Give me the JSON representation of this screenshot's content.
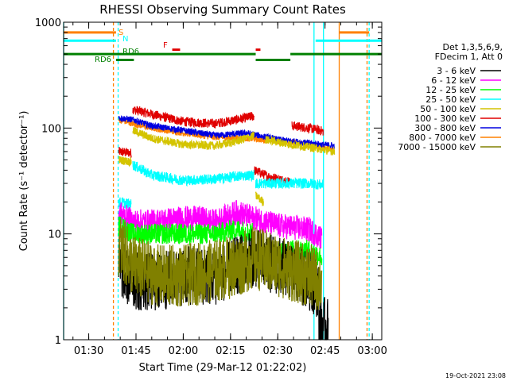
{
  "chart_data": {
    "type": "line",
    "title": "RHESSI Observing Summary Count Rates",
    "xlabel": "Start Time (29-Mar-12 01:22:02)",
    "ylabel": "Count Rate (s⁻¹ detector⁻¹)",
    "y_scale": "log",
    "ylim": [
      1,
      1000
    ],
    "xlim": [
      "01:22:02",
      "03:03:00"
    ],
    "x_ticks": [
      "01:30",
      "01:45",
      "02:00",
      "02:15",
      "02:30",
      "02:45",
      "03:00"
    ],
    "y_ticks": [
      "1",
      "10",
      "100",
      "1000"
    ],
    "footer": "19-Oct-2021 23:08",
    "legend": {
      "placement": "right",
      "header": [
        "Det 1,3,5,6,9,",
        "FDecim 1, Att 0"
      ],
      "entries": [
        {
          "label": "3 - 6 keV",
          "color": "#000000"
        },
        {
          "label": "6 - 12 keV",
          "color": "#ff00ff"
        },
        {
          "label": "12 - 25 keV",
          "color": "#00ff00"
        },
        {
          "label": "25 - 50 keV",
          "color": "#00ffff"
        },
        {
          "label": "50 - 100 keV",
          "color": "#d4c400"
        },
        {
          "label": "100 - 300 keV",
          "color": "#e00000"
        },
        {
          "label": "300 - 800 keV",
          "color": "#0000e0"
        },
        {
          "label": "800 - 7000 keV",
          "color": "#ff8000"
        },
        {
          "label": "7000 - 15000 keV",
          "color": "#808000"
        }
      ]
    },
    "flag_labels": {
      "s": "S",
      "n": "N",
      "f": "F",
      "rd": "RD6"
    },
    "flags": [
      {
        "label": "S",
        "color": "#ff8000",
        "y": 800,
        "segments": [
          [
            "01:22:02",
            "01:38:40"
          ],
          [
            "02:49:30",
            "02:59:00"
          ]
        ]
      },
      {
        "label": "N",
        "color": "#00ffff",
        "y": 670,
        "segments": [
          [
            "01:22:02",
            "01:38:40"
          ],
          [
            "02:42:00",
            "03:03:00"
          ]
        ]
      },
      {
        "label": "F",
        "color": "#e00000",
        "y": 550,
        "segments": [
          [
            "01:56:30",
            "01:59:00"
          ],
          [
            "02:23:00",
            "02:24:30"
          ]
        ]
      },
      {
        "label": "RD6",
        "color": "#008000",
        "y": 500,
        "segments": [
          [
            "01:22:02",
            "02:23:00"
          ],
          [
            "02:34:00",
            "03:03:00"
          ]
        ]
      },
      {
        "label": "RD6",
        "color": "#008000",
        "y": 440,
        "segments": [
          [
            "01:38:40",
            "01:44:20"
          ],
          [
            "02:23:00",
            "02:34:00"
          ]
        ]
      }
    ],
    "vlines": [
      {
        "t": "01:22:02",
        "color": "#00ffff",
        "dashed": false
      },
      {
        "t": "01:37:50",
        "color": "#ff8000",
        "dashed": true
      },
      {
        "t": "01:39:20",
        "color": "#00ffff",
        "dashed": true
      },
      {
        "t": "02:41:30",
        "color": "#00ffff",
        "dashed": false
      },
      {
        "t": "02:44:30",
        "color": "#00ffff",
        "dashed": false
      },
      {
        "t": "02:49:30",
        "color": "#ff8000",
        "dashed": false
      },
      {
        "t": "02:58:20",
        "color": "#ff8000",
        "dashed": true
      },
      {
        "t": "02:59:00",
        "color": "#00ffff",
        "dashed": true
      }
    ],
    "series": [
      {
        "name": "100 - 300 keV",
        "color": "#e00000",
        "noise": 0.045,
        "t0": "01:39:30",
        "segments": [
          {
            "t": [
              "01:39:30",
              "01:43:30"
            ],
            "y": [
              60,
              58
            ]
          },
          {
            "t": [
              "01:44:00",
              "01:50:00",
              "02:00:00",
              "02:10:00",
              "02:17:00",
              "02:22:30"
            ],
            "y": [
              150,
              135,
              115,
              110,
              120,
              130
            ]
          },
          {
            "t": [
              "02:22:30",
              "02:27:00",
              "02:34:00"
            ],
            "y": [
              40,
              35,
              31
            ]
          },
          {
            "t": [
              "02:34:30",
              "02:40:00",
              "02:44:30"
            ],
            "y": [
              105,
              100,
              93
            ]
          }
        ]
      },
      {
        "name": "800 - 7000 keV",
        "color": "#ff8000",
        "noise": 0.03,
        "t0": "01:39:30",
        "segments": [
          {
            "t": [
              "01:39:30",
              "01:44:00",
              "01:50:00",
              "02:00:00",
              "02:10:00",
              "02:20:00",
              "02:30:00",
              "02:40:00",
              "02:48:00"
            ],
            "y": [
              120,
              110,
              100,
              90,
              82,
              80,
              75,
              70,
              62
            ]
          }
        ]
      },
      {
        "name": "300 - 800 keV",
        "color": "#0000e0",
        "noise": 0.03,
        "t0": "01:39:30",
        "segments": [
          {
            "t": [
              "01:39:30",
              "01:44:00",
              "01:50:00",
              "02:00:00",
              "02:10:00",
              "02:20:00",
              "02:30:00",
              "02:40:00",
              "02:48:00"
            ],
            "y": [
              125,
              120,
              105,
              95,
              85,
              90,
              78,
              72,
              68
            ]
          }
        ]
      },
      {
        "name": "50 - 100 keV",
        "color": "#d4c400",
        "noise": 0.04,
        "t0": "01:39:30",
        "segments": [
          {
            "t": [
              "01:39:30",
              "01:43:30"
            ],
            "y": [
              50,
              48
            ]
          },
          {
            "t": [
              "01:44:00",
              "01:50:00",
              "02:00:00",
              "02:10:00",
              "02:17:00",
              "02:22:30"
            ],
            "y": [
              95,
              80,
              70,
              68,
              75,
              85
            ]
          },
          {
            "t": [
              "02:23:00",
              "02:25:30"
            ],
            "y": [
              23,
              20
            ]
          },
          {
            "t": [
              "02:26:00",
              "02:34:00",
              "02:40:00",
              "02:48:00"
            ],
            "y": [
              78,
              70,
              66,
              60
            ]
          }
        ]
      },
      {
        "name": "25 - 50 keV",
        "color": "#00ffff",
        "noise": 0.05,
        "t0": "01:39:30",
        "segments": [
          {
            "t": [
              "01:39:30",
              "01:43:30"
            ],
            "y": [
              20,
              19
            ]
          },
          {
            "t": [
              "01:44:00",
              "01:50:00",
              "02:00:00",
              "02:10:00",
              "02:17:00",
              "02:22:30"
            ],
            "y": [
              45,
              36,
              32,
              33,
              35,
              36
            ]
          },
          {
            "t": [
              "02:23:00",
              "02:34:00",
              "02:40:00",
              "02:44:30"
            ],
            "y": [
              30,
              30,
              30,
              29
            ]
          }
        ]
      },
      {
        "name": "6 - 12 keV",
        "color": "#ff00ff",
        "noise": 0.12,
        "t0": "01:39:30",
        "segments": [
          {
            "t": [
              "01:39:30",
              "01:44:00",
              "01:50:00",
              "02:00:00",
              "02:05:00",
              "02:10:00",
              "02:17:00",
              "02:22:30",
              "02:30:00",
              "02:40:00",
              "02:44:00"
            ],
            "y": [
              16,
              13,
              13,
              14,
              14,
              13,
              16,
              14,
              12,
              11,
              9
            ]
          }
        ]
      },
      {
        "name": "12 - 25 keV",
        "color": "#00ff00",
        "noise": 0.1,
        "t0": "01:39:30",
        "segments": [
          {
            "t": [
              "01:39:30",
              "01:44:00",
              "01:50:00",
              "02:00:00",
              "02:10:00",
              "02:17:00",
              "02:22:30"
            ],
            "y": [
              12,
              10,
              10,
              10,
              10,
              11,
              10
            ]
          },
          {
            "t": [
              "02:23:00",
              "02:34:00",
              "02:40:00",
              "02:44:00"
            ],
            "y": [
              6,
              7,
              7,
              6
            ]
          }
        ]
      },
      {
        "name": "3 - 6 keV",
        "color": "#000000",
        "noise": 0.28,
        "t0": "01:39:30",
        "segments": [
          {
            "t": [
              "01:39:30",
              "01:42:00",
              "01:46:00",
              "01:52:00",
              "02:00:00",
              "02:10:00",
              "02:17:00",
              "02:22:30",
              "02:30:00",
              "02:38:00",
              "02:43:00"
            ],
            "y": [
              5,
              4,
              3.5,
              3.5,
              4,
              4,
              5,
              6,
              5,
              4,
              3
            ]
          },
          {
            "t": [
              "02:43:00",
              "02:46:00"
            ],
            "y": [
              1.4,
              1.3
            ]
          }
        ]
      },
      {
        "name": "7000 - 15000 keV",
        "color": "#808000",
        "noise": 0.3,
        "t0": "01:39:30",
        "segments": [
          {
            "t": [
              "01:39:30",
              "01:44:00",
              "01:52:00",
              "02:00:00",
              "02:10:00",
              "02:17:00",
              "02:22:30",
              "02:30:00",
              "02:40:00",
              "02:44:00"
            ],
            "y": [
              8,
              5,
              4,
              4,
              4.5,
              5,
              6,
              5,
              4,
              3.5
            ]
          }
        ]
      }
    ]
  }
}
